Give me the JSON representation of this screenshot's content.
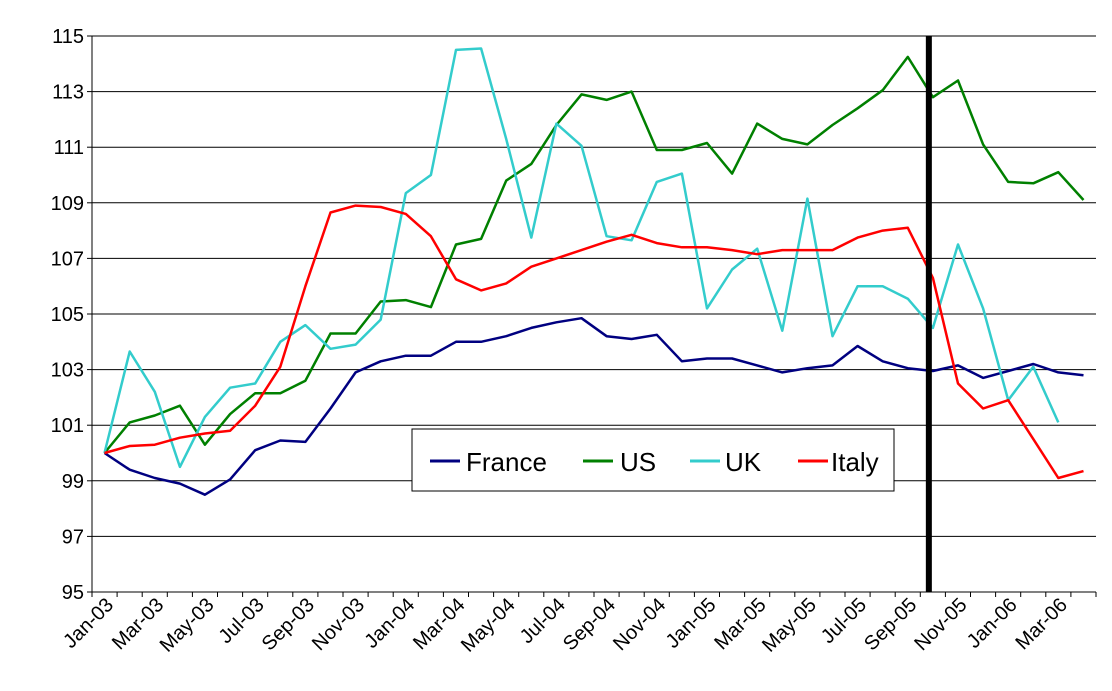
{
  "chart_data": {
    "type": "line",
    "ylim": [
      95,
      115
    ],
    "yticks": [
      "95",
      "97",
      "99",
      "101",
      "103",
      "105",
      "107",
      "109",
      "111",
      "113",
      "115"
    ],
    "xtick_labels": [
      "Jan-03",
      "Mar-03",
      "May-03",
      "Jul-03",
      "Sep-03",
      "Nov-03",
      "Jan-04",
      "Mar-04",
      "May-04",
      "Jul-04",
      "Sep-04",
      "Nov-04",
      "Jan-05",
      "Mar-05",
      "May-05",
      "Jul-05",
      "Sep-05",
      "Nov-05",
      "Jan-06",
      "Mar-06"
    ],
    "x": [
      "Jan-03",
      "Feb-03",
      "Mar-03",
      "Apr-03",
      "May-03",
      "Jun-03",
      "Jul-03",
      "Aug-03",
      "Sep-03",
      "Oct-03",
      "Nov-03",
      "Dec-03",
      "Jan-04",
      "Feb-04",
      "Mar-04",
      "Apr-04",
      "May-04",
      "Jun-04",
      "Jul-04",
      "Aug-04",
      "Sep-04",
      "Oct-04",
      "Nov-04",
      "Dec-04",
      "Jan-05",
      "Feb-05",
      "Mar-05",
      "Apr-05",
      "May-05",
      "Jun-05",
      "Jul-05",
      "Aug-05",
      "Sep-05",
      "Oct-05",
      "Nov-05",
      "Dec-05",
      "Jan-06",
      "Feb-06",
      "Mar-06",
      "Apr-06"
    ],
    "grid": "horizontal",
    "legend_position": "bottom-center",
    "vertical_marker_x": "Oct-05",
    "series": [
      {
        "name": "France",
        "color": "#000080",
        "values": [
          100,
          99.4,
          99.1,
          98.9,
          98.5,
          99.05,
          100.1,
          100.45,
          100.4,
          101.6,
          102.9,
          103.3,
          103.5,
          103.5,
          104.0,
          104.0,
          104.2,
          104.5,
          104.7,
          104.85,
          104.2,
          104.1,
          104.25,
          103.3,
          103.4,
          103.4,
          103.15,
          102.9,
          103.05,
          103.15,
          103.85,
          103.3,
          103.05,
          102.95,
          103.15,
          102.7,
          102.95,
          103.2,
          102.9,
          102.8
        ]
      },
      {
        "name": "US",
        "color": "#008000",
        "values": [
          100,
          101.1,
          101.35,
          101.7,
          100.3,
          101.4,
          102.15,
          102.15,
          102.6,
          104.3,
          104.3,
          105.45,
          105.5,
          105.25,
          107.5,
          107.7,
          109.8,
          110.4,
          111.8,
          112.9,
          112.7,
          113.0,
          110.9,
          110.9,
          111.15,
          110.05,
          111.85,
          111.3,
          111.1,
          111.8,
          112.4,
          113.05,
          114.25,
          112.8,
          113.4,
          111.1,
          109.75,
          109.7,
          110.1,
          109.1
        ]
      },
      {
        "name": "UK",
        "color": "#33CCCC",
        "values": [
          100,
          103.65,
          102.2,
          99.5,
          101.3,
          102.35,
          102.5,
          104.0,
          104.6,
          103.75,
          103.9,
          104.8,
          109.35,
          110.0,
          114.5,
          114.55,
          111.3,
          107.75,
          111.85,
          111.05,
          107.8,
          107.65,
          109.75,
          110.05,
          105.2,
          106.6,
          107.35,
          104.4,
          109.15,
          104.2,
          106.0,
          106.0,
          105.55,
          104.5,
          107.5,
          105.2,
          101.9,
          103.1,
          101.1,
          null
        ]
      },
      {
        "name": "Italy",
        "color": "#FF0000",
        "values": [
          100,
          100.25,
          100.3,
          100.55,
          100.7,
          100.8,
          101.7,
          103.1,
          106.0,
          108.65,
          108.9,
          108.85,
          108.6,
          107.8,
          106.25,
          105.85,
          106.1,
          106.7,
          107.0,
          107.3,
          107.6,
          107.85,
          107.55,
          107.4,
          107.4,
          107.3,
          107.15,
          107.3,
          107.3,
          107.3,
          107.75,
          108.0,
          108.1,
          106.3,
          102.5,
          101.6,
          101.9,
          100.5,
          99.1,
          99.35
        ]
      }
    ]
  }
}
